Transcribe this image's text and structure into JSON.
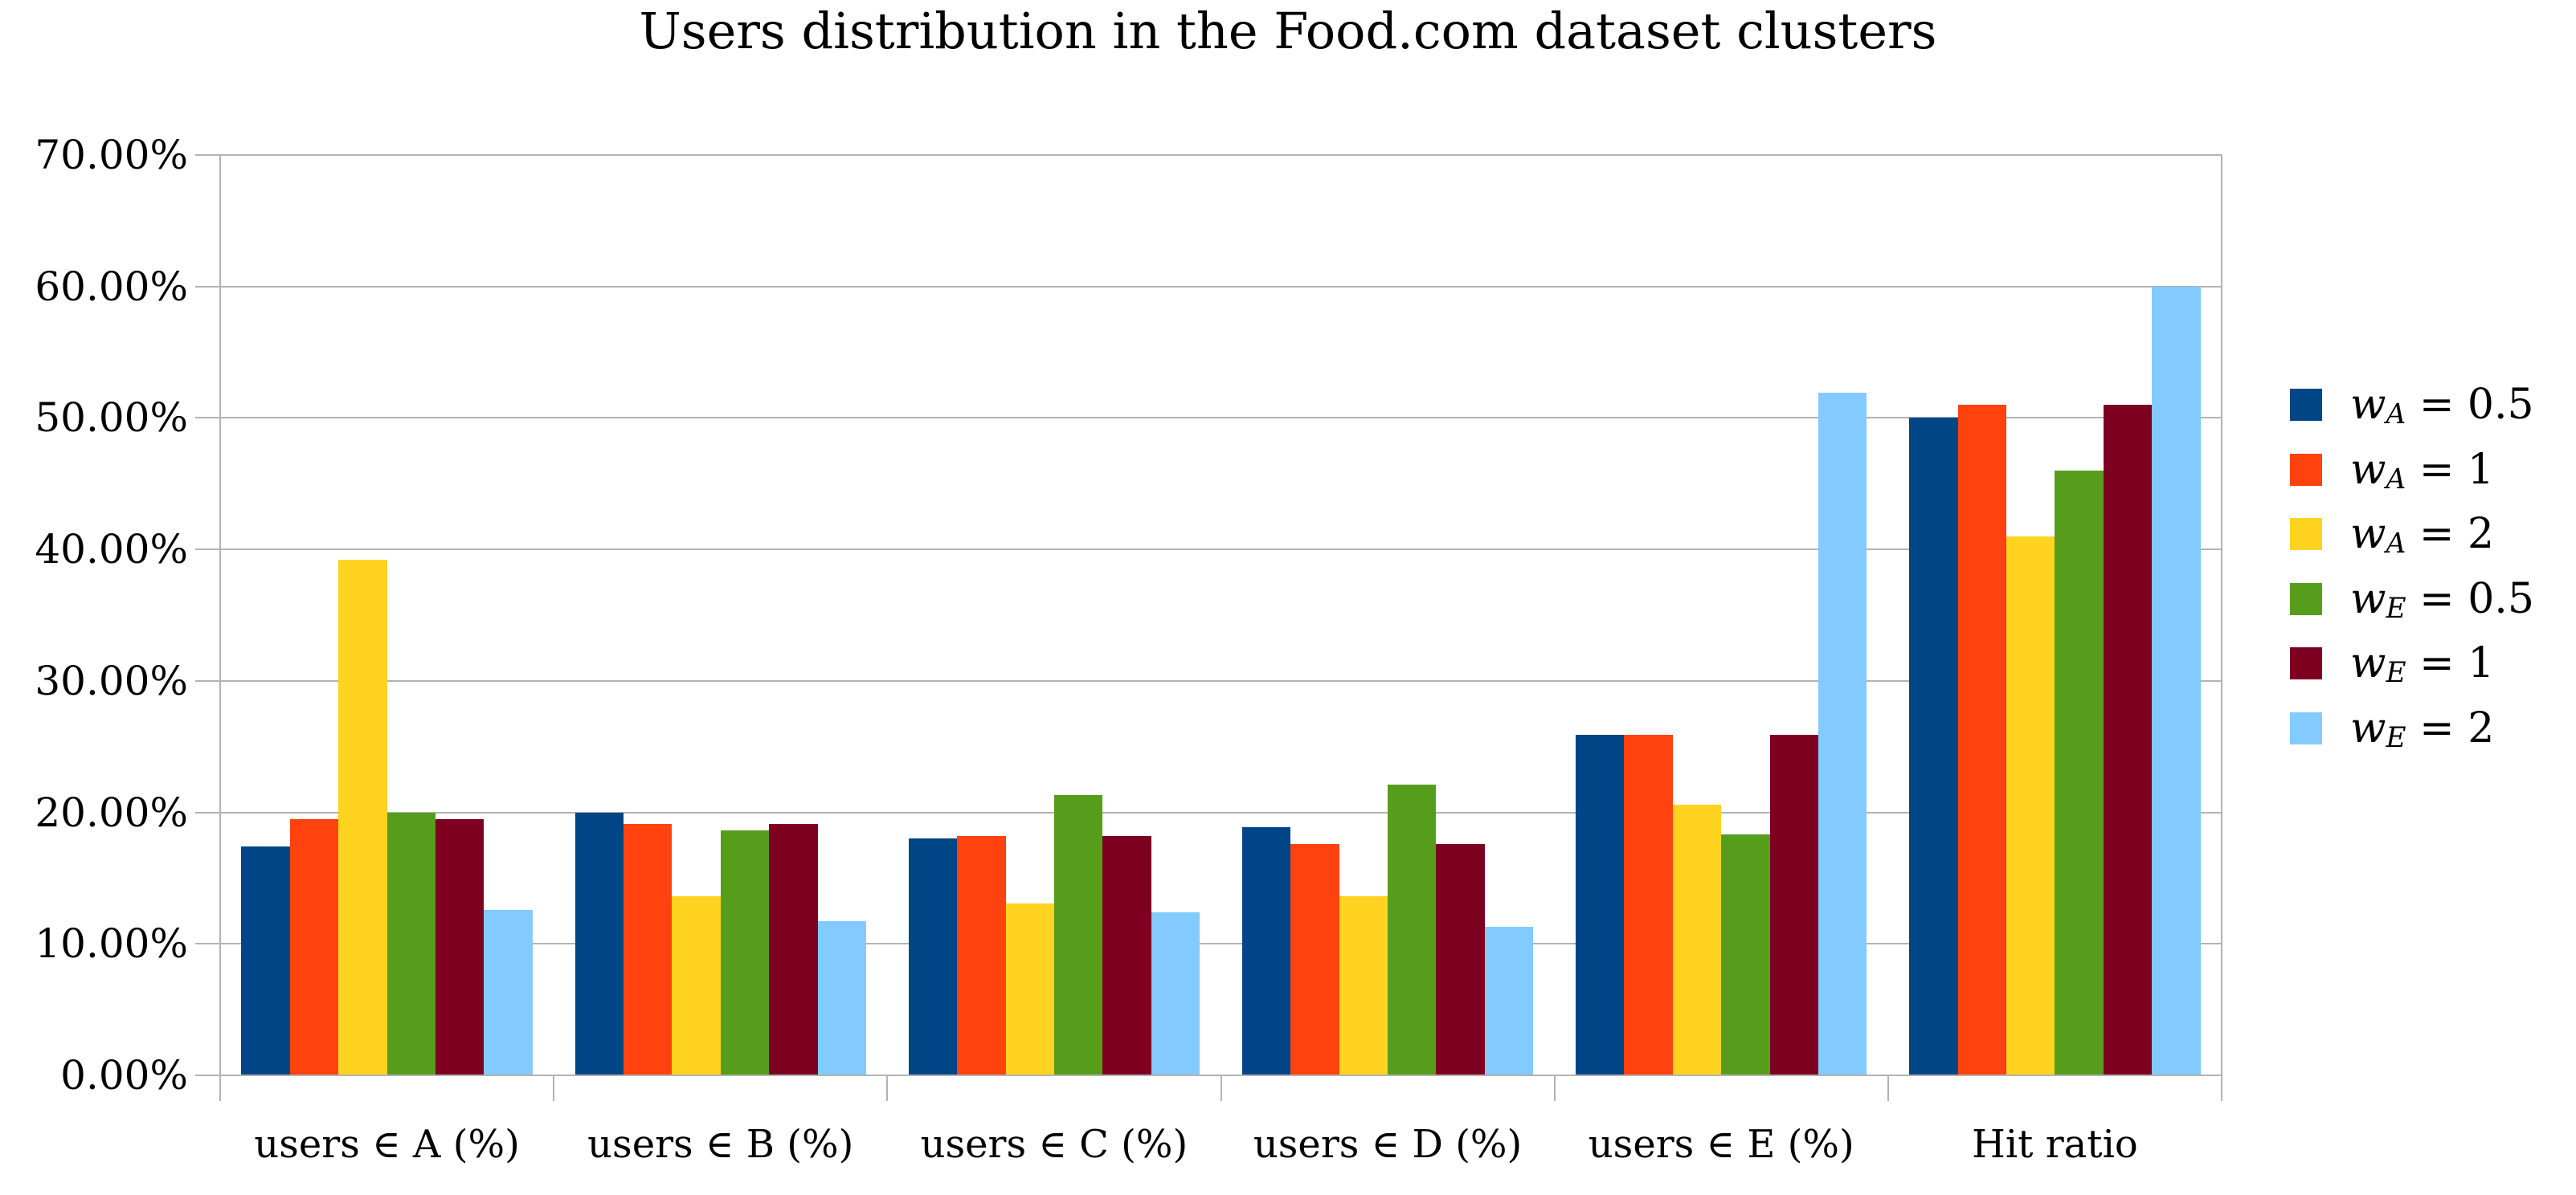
{
  "chart_data": {
    "type": "bar",
    "title": "Users distribution in the Food.com dataset clusters",
    "categories": [
      "users ∈ A (%)",
      "users ∈ B (%)",
      "users ∈ C (%)",
      "users ∈ D (%)",
      "users ∈ E (%)",
      "Hit ratio"
    ],
    "series": [
      {
        "label": "w_A = 0.5",
        "var": "w",
        "sub": "A",
        "rhs": "= 0.5",
        "color": "#004586",
        "values": [
          17.4,
          20.0,
          18.0,
          18.9,
          25.9,
          50.0
        ]
      },
      {
        "label": "w_A = 1",
        "var": "w",
        "sub": "A",
        "rhs": "= 1",
        "color": "#ff420e",
        "values": [
          19.5,
          19.1,
          18.2,
          17.6,
          25.9,
          51.0
        ]
      },
      {
        "label": "w_A = 2",
        "var": "w",
        "sub": "A",
        "rhs": "= 2",
        "color": "#ffd320",
        "values": [
          39.2,
          13.6,
          13.1,
          13.6,
          20.6,
          41.0
        ]
      },
      {
        "label": "w_E = 0.5",
        "var": "w",
        "sub": "E",
        "rhs": "= 0.5",
        "color": "#579d1c",
        "values": [
          20.0,
          18.6,
          21.3,
          22.1,
          18.3,
          46.0
        ]
      },
      {
        "label": "w_E = 1",
        "var": "w",
        "sub": "E",
        "rhs": "= 1",
        "color": "#7e0021",
        "values": [
          19.5,
          19.1,
          18.2,
          17.6,
          25.9,
          51.0
        ]
      },
      {
        "label": "w_E = 2",
        "var": "w",
        "sub": "E",
        "rhs": "= 2",
        "color": "#83caff",
        "values": [
          12.6,
          11.7,
          12.4,
          11.3,
          51.9,
          60.0
        ]
      }
    ],
    "y_axis": {
      "min": 0,
      "max": 70,
      "step": 10,
      "ticks": [
        "0.00%",
        "10.00%",
        "20.00%",
        "30.00%",
        "40.00%",
        "50.00%",
        "60.00%",
        "70.00%"
      ],
      "grid": true
    },
    "legend_position": "right",
    "colors": {
      "grid": "#b3b3b3",
      "axis": "#b3b3b3",
      "text": "#000000",
      "background": "#ffffff"
    }
  }
}
